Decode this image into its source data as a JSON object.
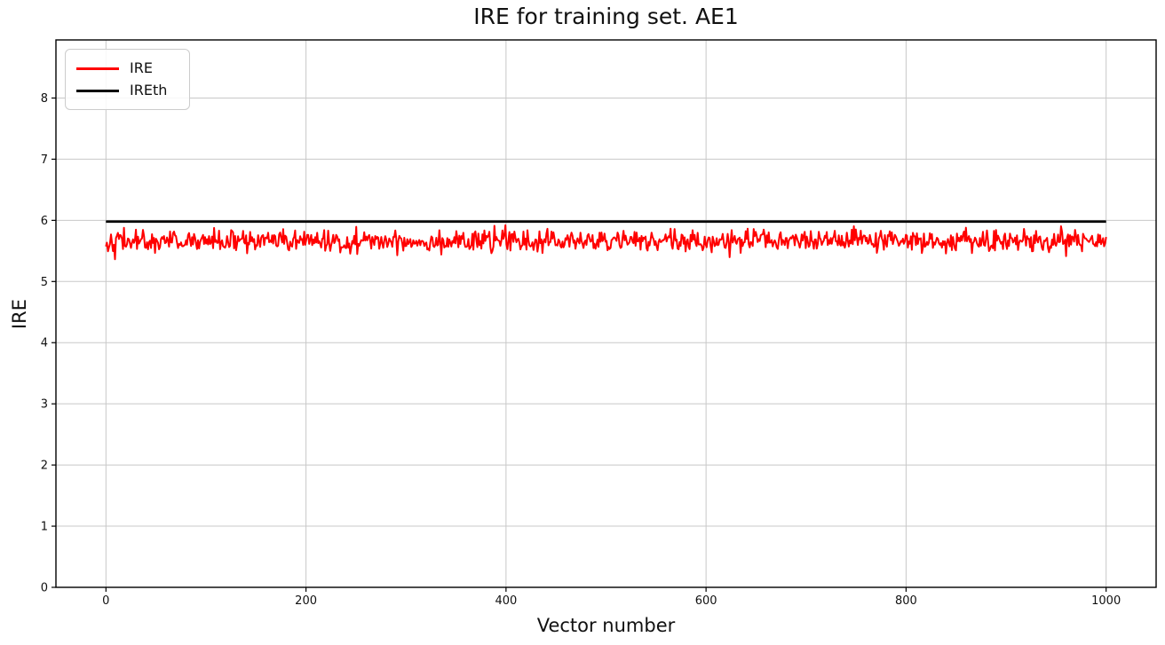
{
  "figure": {
    "background": "#ffffff"
  },
  "chart_data": {
    "type": "line",
    "title": "IRE for training set. AE1",
    "xlabel": "Vector number",
    "ylabel": "IRE",
    "xlim": [
      -50,
      1050
    ],
    "ylim": [
      0,
      8.95
    ],
    "xticks": [
      0,
      200,
      400,
      600,
      800,
      1000
    ],
    "yticks": [
      0,
      1,
      2,
      3,
      4,
      5,
      6,
      7,
      8
    ],
    "grid": true,
    "grid_color": "#c8c8c8",
    "spine_color": "#000000",
    "legend": {
      "position": "upper-left",
      "entries": [
        {
          "label": "IRE",
          "color": "#ff0000"
        },
        {
          "label": "IREth",
          "color": "#000000"
        }
      ]
    },
    "series": [
      {
        "name": "IRE",
        "kind": "noise-line",
        "color": "#ff0000",
        "line_width": 2,
        "x_start": 0,
        "x_end": 1000,
        "n_points": 1000,
        "mean": 5.66,
        "std": 0.09,
        "min": 5.3,
        "max": 5.96,
        "seed": 42
      },
      {
        "name": "IREth",
        "kind": "hline",
        "color": "#000000",
        "line_width": 2.8,
        "x_start": 0,
        "x_end": 1000,
        "value": 5.98
      }
    ]
  }
}
